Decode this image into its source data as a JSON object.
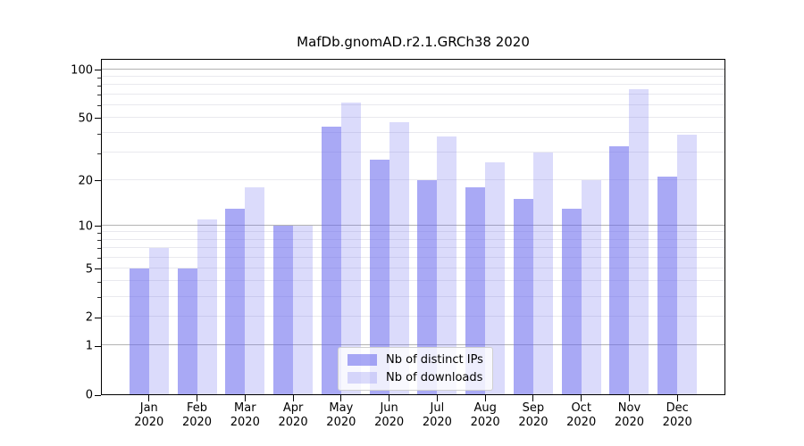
{
  "title": "MafDb.gnomAD.r2.1.GRCh38 2020",
  "chart_data": {
    "type": "bar",
    "title": "MafDb.gnomAD.r2.1.GRCh38 2020",
    "xlabel": "",
    "ylabel": "",
    "categories": [
      "Jan 2020",
      "Feb 2020",
      "Mar 2020",
      "Apr 2020",
      "May 2020",
      "Jun 2020",
      "Jul 2020",
      "Aug 2020",
      "Sep 2020",
      "Oct 2020",
      "Nov 2020",
      "Dec 2020"
    ],
    "series": [
      {
        "name": "Nb of distinct IPs",
        "color": "#6666ee",
        "alpha": 0.56,
        "values": [
          5,
          5,
          13,
          10,
          44,
          27,
          20,
          18,
          15,
          13,
          33,
          21
        ]
      },
      {
        "name": "Nb of downloads",
        "color": "#6666ee",
        "alpha": 0.235,
        "values": [
          7,
          11,
          18,
          10,
          62,
          47,
          38,
          26,
          30,
          20,
          75,
          39
        ]
      }
    ],
    "yscale": "log1p",
    "ylim": [
      0,
      118
    ],
    "yticks": [
      0,
      1,
      2,
      5,
      10,
      20,
      50,
      100
    ],
    "minor_yticks": [
      3,
      4,
      6,
      7,
      8,
      9,
      30,
      40,
      60,
      70,
      80,
      90
    ],
    "major_grid_values": [
      1,
      10,
      100
    ],
    "grid": "horizontal",
    "legend_position": "lower center",
    "major_grid_color": "#b3b3b3",
    "minor_grid_color": "#e9e9ee"
  }
}
